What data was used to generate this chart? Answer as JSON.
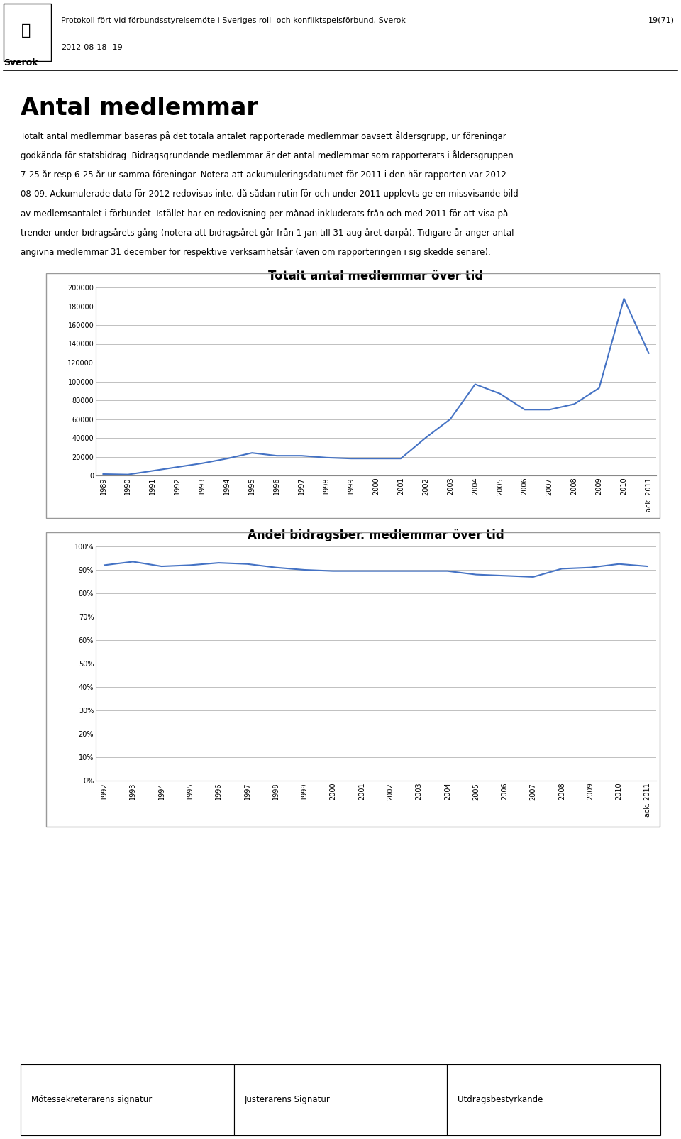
{
  "header_text": "Protokoll fört vid förbundsstyrelsemöte i Sveriges roll- och konfliktspelsförbund, Sverok",
  "header_page": "19(71)",
  "header_date": "2012-08-18--19",
  "title_main": "Antal medlemmar",
  "body_text_lines": [
    "Totalt antal medlemmar baseras på det totala antalet rapporterade medlemmar oavsett åldersgrupp, ur föreningar",
    "godkända för statsbidrag. Bidragsgrundande medlemmar är det antal medlemmar som rapporterats i åldersgruppen",
    "7-25 år resp 6-25 år ur samma föreningar. Notera att ackumuleringsdatumet för 2011 i den här rapporten var 2012-",
    "08-09. Ackumulerade data för 2012 redovisas inte, då sådan rutin för och under 2011 upplevts ge en missvisande bild",
    "av medlemsantalet i förbundet. Istället har en redovisning per månad inkluderats från och med 2011 för att visa på",
    "trender under bidragsårets gång (notera att bidragsåret går från 1 jan till 31 aug året därpå). Tidigare år anger antal",
    "angivna medlemmar 31 december för respektive verksamhetsår (även om rapporteringen i sig skedde senare)."
  ],
  "chart1_title": "Totalt antal medlemmar över tid",
  "chart1_labels": [
    "1989",
    "1990",
    "1991",
    "1992",
    "1993",
    "1994",
    "1995",
    "1996",
    "1997",
    "1998",
    "1999",
    "2000",
    "2001",
    "2002",
    "2003",
    "2004",
    "2005",
    "2006",
    "2007",
    "2008",
    "2009",
    "2010",
    "ack. 2011"
  ],
  "chart1_values": [
    1500,
    1000,
    5000,
    9000,
    13000,
    18000,
    24000,
    21000,
    21000,
    19000,
    18000,
    18000,
    18000,
    40000,
    60000,
    97000,
    87000,
    70000,
    70000,
    76000,
    93000,
    188000,
    130000
  ],
  "chart1_ylim": [
    0,
    200000
  ],
  "chart1_yticks": [
    0,
    20000,
    40000,
    60000,
    80000,
    100000,
    120000,
    140000,
    160000,
    180000,
    200000
  ],
  "chart1_line_color": "#4472C4",
  "chart2_title": "Andel bidragsber. medlemmar över tid",
  "chart2_labels": [
    "1992",
    "1993",
    "1994",
    "1995",
    "1996",
    "1997",
    "1998",
    "1999",
    "2000",
    "2001",
    "2002",
    "2003",
    "2004",
    "2005",
    "2006",
    "2007",
    "2008",
    "2009",
    "2010",
    "ack. 2011"
  ],
  "chart2_values": [
    0.92,
    0.935,
    0.915,
    0.92,
    0.93,
    0.925,
    0.91,
    0.9,
    0.895,
    0.895,
    0.895,
    0.895,
    0.895,
    0.88,
    0.875,
    0.87,
    0.905,
    0.91,
    0.925,
    0.915
  ],
  "chart2_ylim": [
    0,
    1.0
  ],
  "chart2_yticks": [
    0.0,
    0.1,
    0.2,
    0.3,
    0.4,
    0.5,
    0.6,
    0.7,
    0.8,
    0.9,
    1.0
  ],
  "chart2_line_color": "#4472C4",
  "footer_col1": "Mötessekreterarens signatur",
  "footer_col2": "Justerarens Signatur",
  "footer_col3": "Utdragsbestyrkande",
  "background_color": "#ffffff",
  "grid_color": "#c0c0c0",
  "border_color": "#999999",
  "line_color": "#000000"
}
